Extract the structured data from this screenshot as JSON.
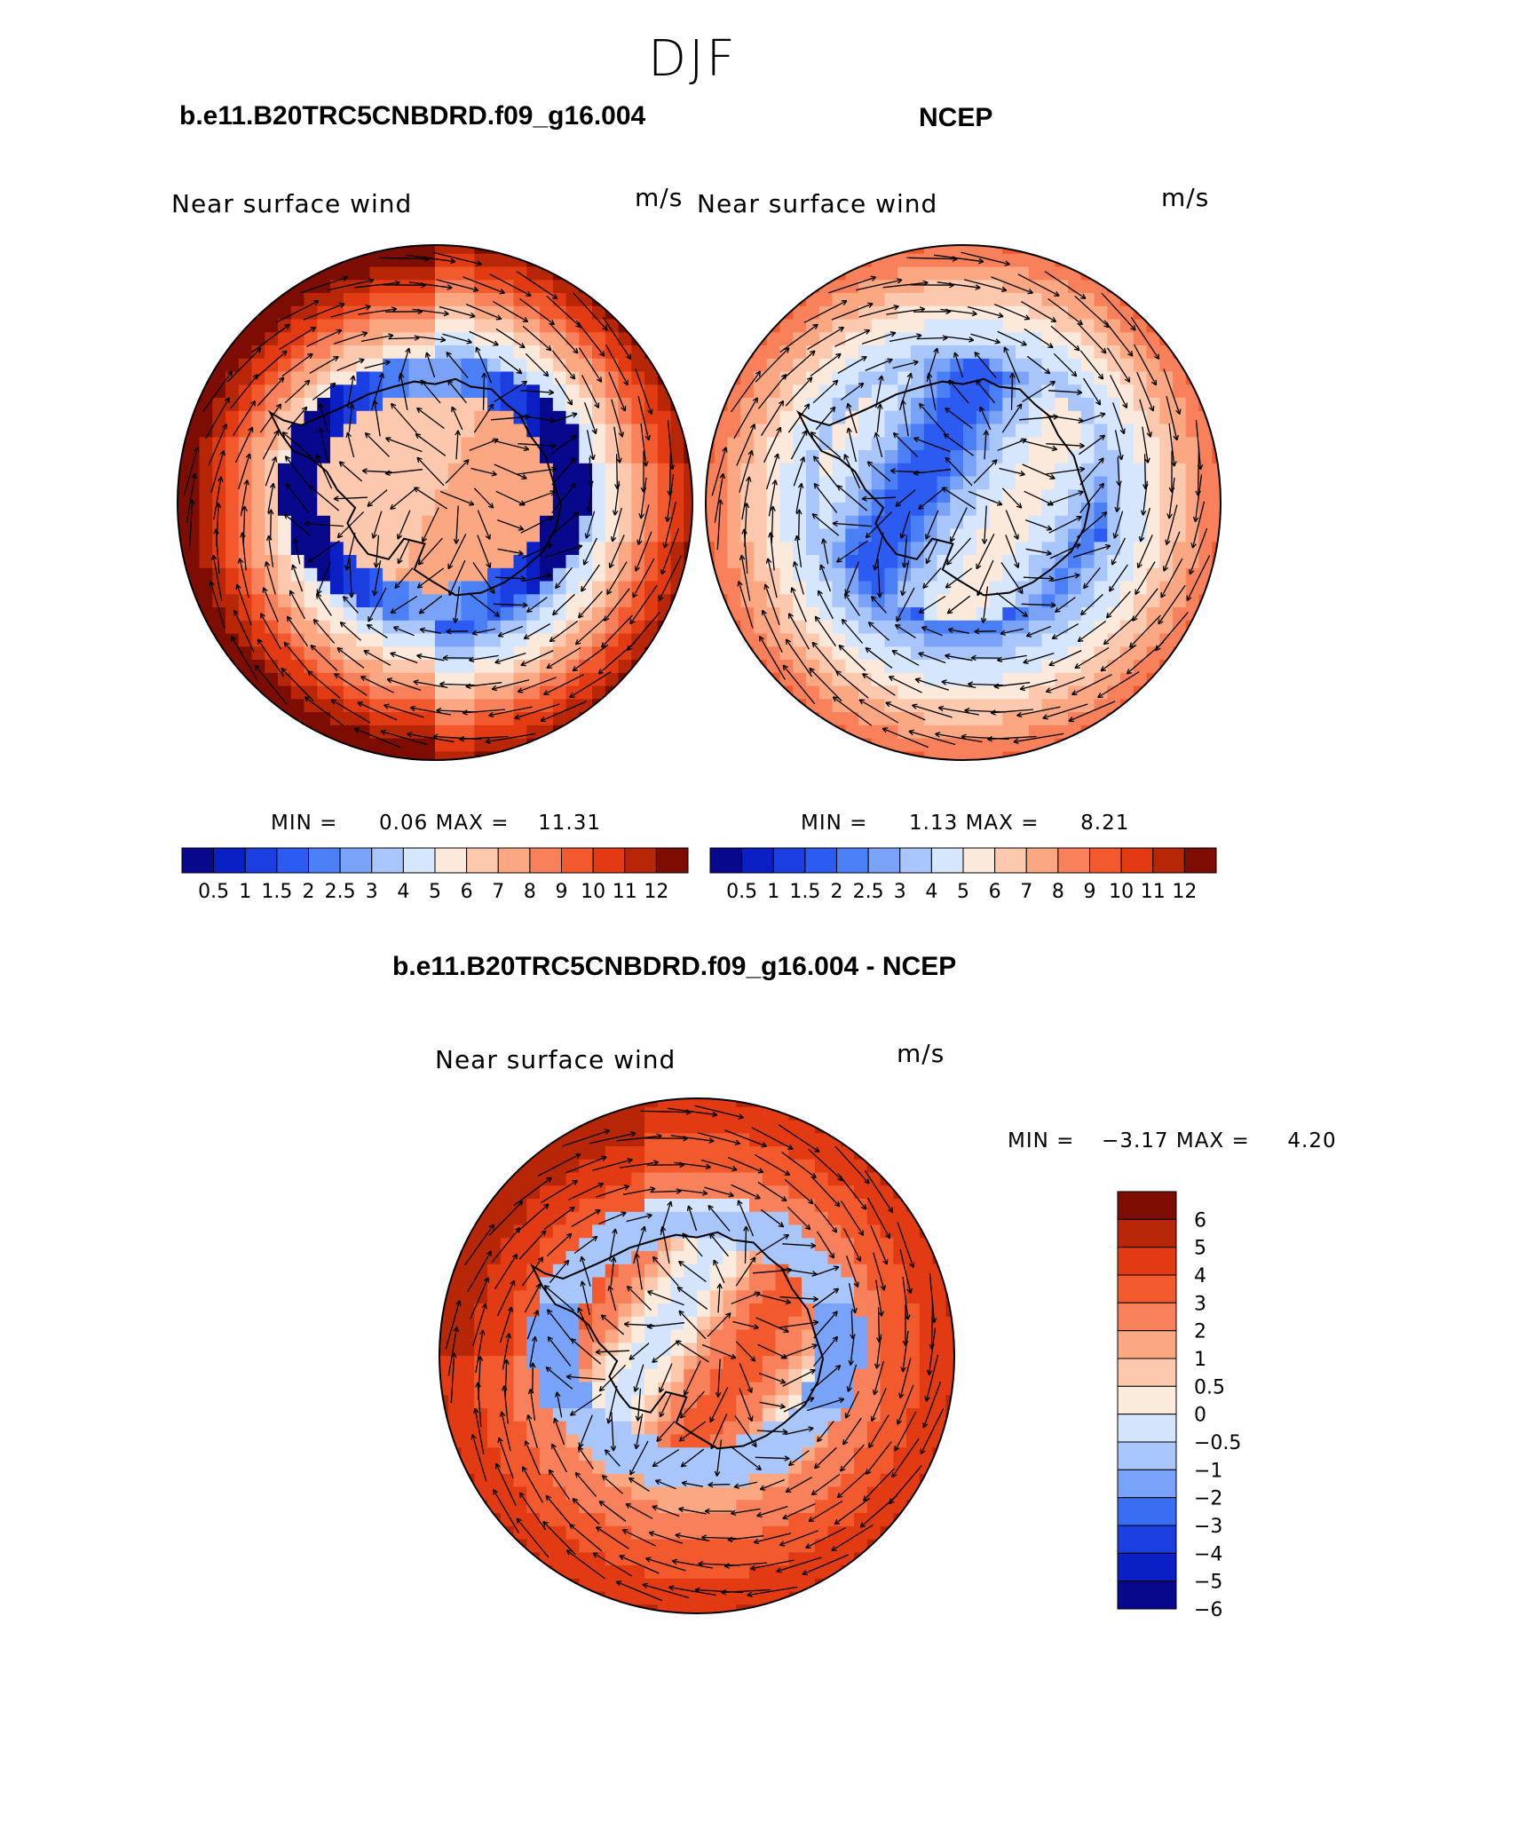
{
  "figure": {
    "title": "DJF"
  },
  "palettes": {
    "abs": [
      "#08088c",
      "#0a1fc4",
      "#1a3ee0",
      "#2b5bf0",
      "#4a7ff5",
      "#7aa3f8",
      "#a9c6fb",
      "#d6e6fc",
      "#fbe9dc",
      "#fcc9ae",
      "#fba882",
      "#f8805a",
      "#f25a2e",
      "#e23a12",
      "#b82608",
      "#7d0d02"
    ],
    "diff": [
      "#08088c",
      "#0a1fc4",
      "#1a3ee0",
      "#3a6ef2",
      "#79a3f8",
      "#a9c6fb",
      "#d4e4fc",
      "#fbebdd",
      "#fcc9ae",
      "#fba882",
      "#f8805a",
      "#f25a2e",
      "#e23a12",
      "#b82608",
      "#7d0d02"
    ],
    "coast": "#000000",
    "arrow": "#000000"
  },
  "chart_data": [
    {
      "type": "heatmap",
      "projection": "south-polar-stereographic",
      "case_title": "b.e11.B20TRC5CNBDRD.f09_g16.004",
      "title": "Near surface wind",
      "units": "m/s",
      "stats": {
        "min_label": "MIN =",
        "min": "0.06",
        "max_label": "MAX =",
        "max": "11.31"
      },
      "colorbar": {
        "orientation": "horizontal",
        "levels": [
          "0.5",
          "1",
          "1.5",
          "2",
          "2.5",
          "3",
          "4",
          "5",
          "6",
          "7",
          "8",
          "9",
          "10",
          "11",
          "12"
        ]
      },
      "field_note": "strong westerlies 9-12 m/s over ocean ring, 0.5-3 m/s near coast, 6-8 m/s katabatic interior"
    },
    {
      "type": "heatmap",
      "projection": "south-polar-stereographic",
      "case_title": "NCEP",
      "title": "Near surface wind",
      "units": "m/s",
      "stats": {
        "min_label": "MIN =",
        "min": "1.13",
        "max_label": "MAX =",
        "max": "8.21"
      },
      "colorbar": {
        "orientation": "horizontal",
        "levels": [
          "0.5",
          "1",
          "1.5",
          "2",
          "2.5",
          "3",
          "4",
          "5",
          "6",
          "7",
          "8",
          "9",
          "10",
          "11",
          "12"
        ]
      },
      "field_note": "westerlies 6-9 m/s over ocean ring, 2-5 m/s coastal and interior"
    },
    {
      "type": "heatmap",
      "projection": "south-polar-stereographic",
      "case_title": "b.e11.B20TRC5CNBDRD.f09_g16.004 - NCEP",
      "title": "Near surface wind",
      "units": "m/s",
      "stats": {
        "min_label": "MIN =",
        "min": "−3.17",
        "max_label": "MAX =",
        "max": "4.20"
      },
      "colorbar": {
        "orientation": "vertical",
        "levels": [
          "6",
          "5",
          "4",
          "3",
          "2",
          "1",
          "0.5",
          "0",
          "−0.5",
          "−1",
          "−2",
          "−3",
          "−4",
          "−5",
          "−6"
        ]
      },
      "field_note": "model stronger over outer ocean (+2 to +4), weaker over coastal belt (-1 to -3), mixed over continent"
    }
  ]
}
